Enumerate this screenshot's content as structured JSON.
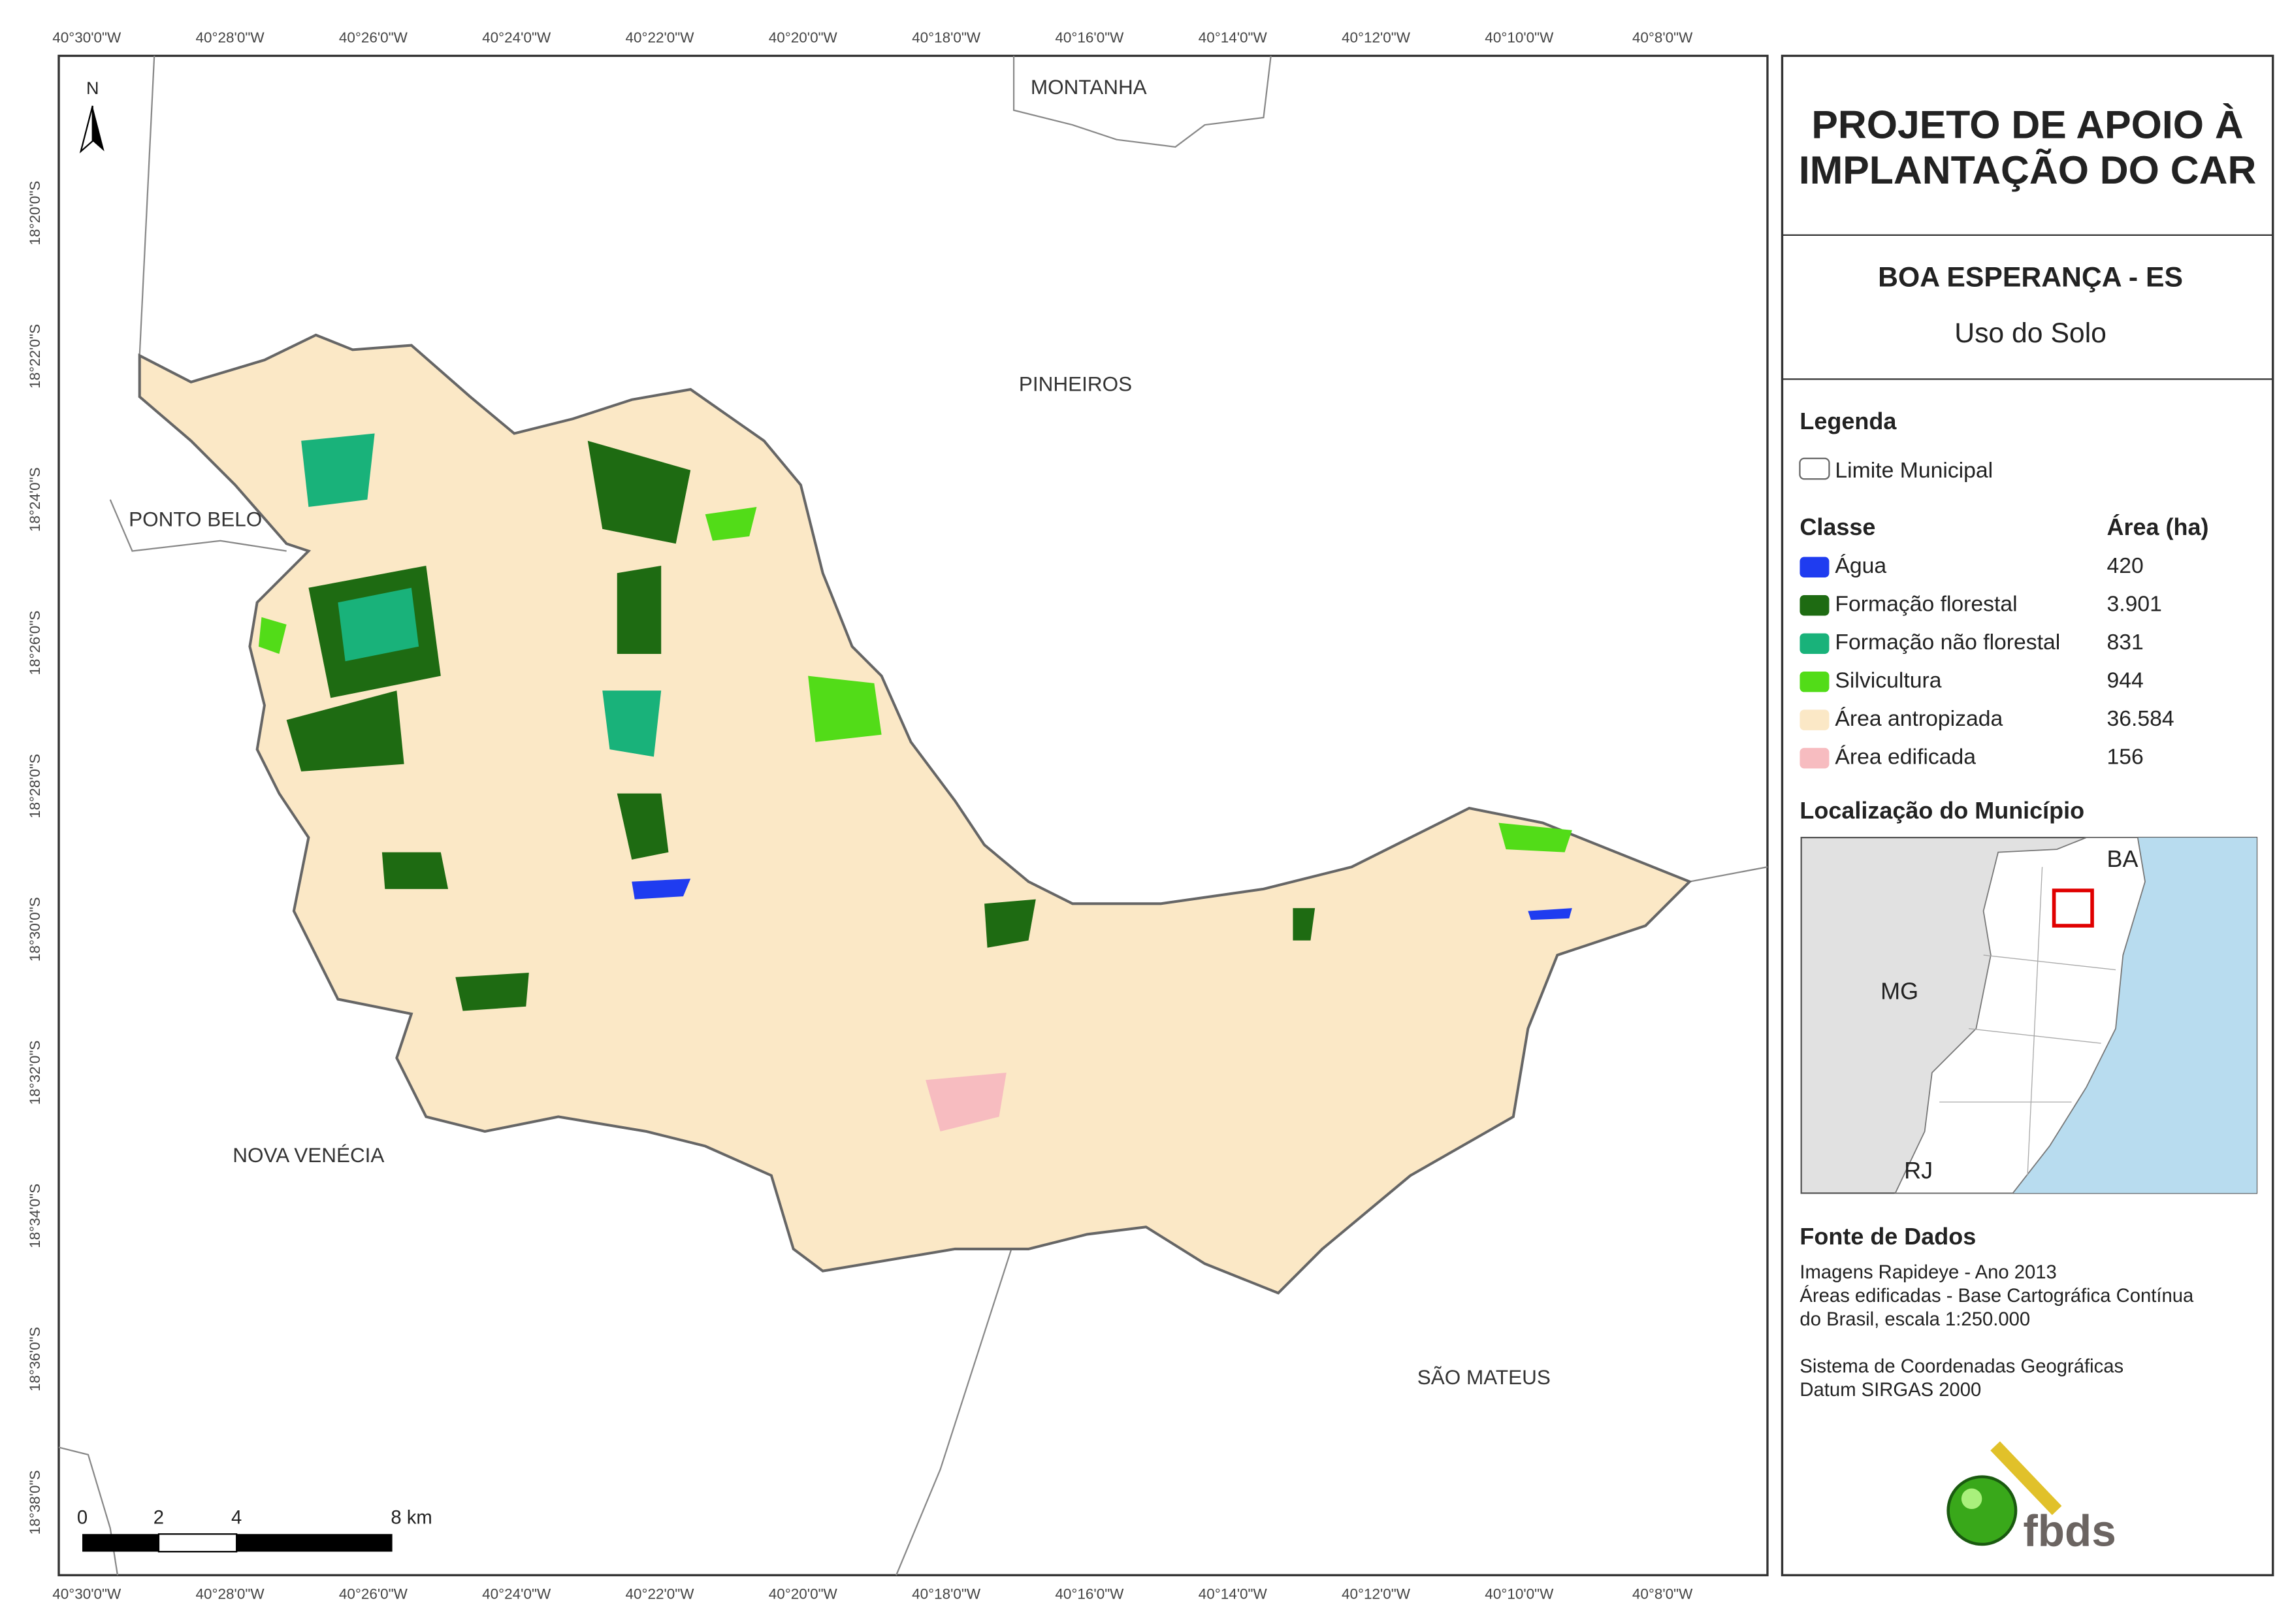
{
  "header": {
    "title_lines": [
      "PROJETO DE APOIO À",
      "IMPLANTAÇÃO DO CAR"
    ],
    "municipality": "BOA ESPERANÇA - ES",
    "subtitle": "Uso do Solo"
  },
  "map": {
    "x_labels": [
      "40°30'0\"W",
      "40°28'0\"W",
      "40°26'0\"W",
      "40°24'0\"W",
      "40°22'0\"W",
      "40°20'0\"W",
      "40°18'0\"W",
      "40°16'0\"W",
      "40°14'0\"W",
      "40°12'0\"W",
      "40°10'0\"W",
      "40°8'0\"W"
    ],
    "y_labels": [
      "18°20'0\"S",
      "18°22'0\"S",
      "18°24'0\"S",
      "18°26'0\"S",
      "18°28'0\"S",
      "18°30'0\"S",
      "18°32'0\"S",
      "18°34'0\"S",
      "18°36'0\"S",
      "18°38'0\"S"
    ],
    "places": [
      "MONTANHA",
      "PINHEIROS",
      "PONTO BELO",
      "NOVA VENÉCIA",
      "SÃO MATEUS"
    ],
    "north": "N",
    "scale_labels": [
      "0",
      "2",
      "4",
      "8 km"
    ]
  },
  "legend": {
    "title": "Legenda",
    "boundary": "Limite Municipal",
    "class_header": "Classe",
    "area_header": "Área (ha)",
    "classes": [
      {
        "name": "Água",
        "area": "420",
        "color": "#1f3cf0"
      },
      {
        "name": "Formação florestal",
        "area": "3.901",
        "color": "#1e6b12"
      },
      {
        "name": "Formação não florestal",
        "area": "831",
        "color": "#19b27a"
      },
      {
        "name": "Silvicultura",
        "area": "944",
        "color": "#52dc18"
      },
      {
        "name": "Área antropizada",
        "area": "36.584",
        "color": "#fbe8c6"
      },
      {
        "name": "Área edificada",
        "area": "156",
        "color": "#f7bcc0"
      }
    ]
  },
  "location": {
    "title": "Localização do Município",
    "labels": [
      "BA",
      "MG",
      "RJ"
    ]
  },
  "source": {
    "title": "Fonte de Dados",
    "lines": [
      "Imagens Rapideye - Ano 2013",
      "Áreas edificadas - Base Cartográfica Contínua",
      "do Brasil, escala 1:250.000",
      "",
      "Sistema de Coordenadas Geográficas",
      "Datum SIRGAS 2000"
    ]
  },
  "logo": "fbds"
}
